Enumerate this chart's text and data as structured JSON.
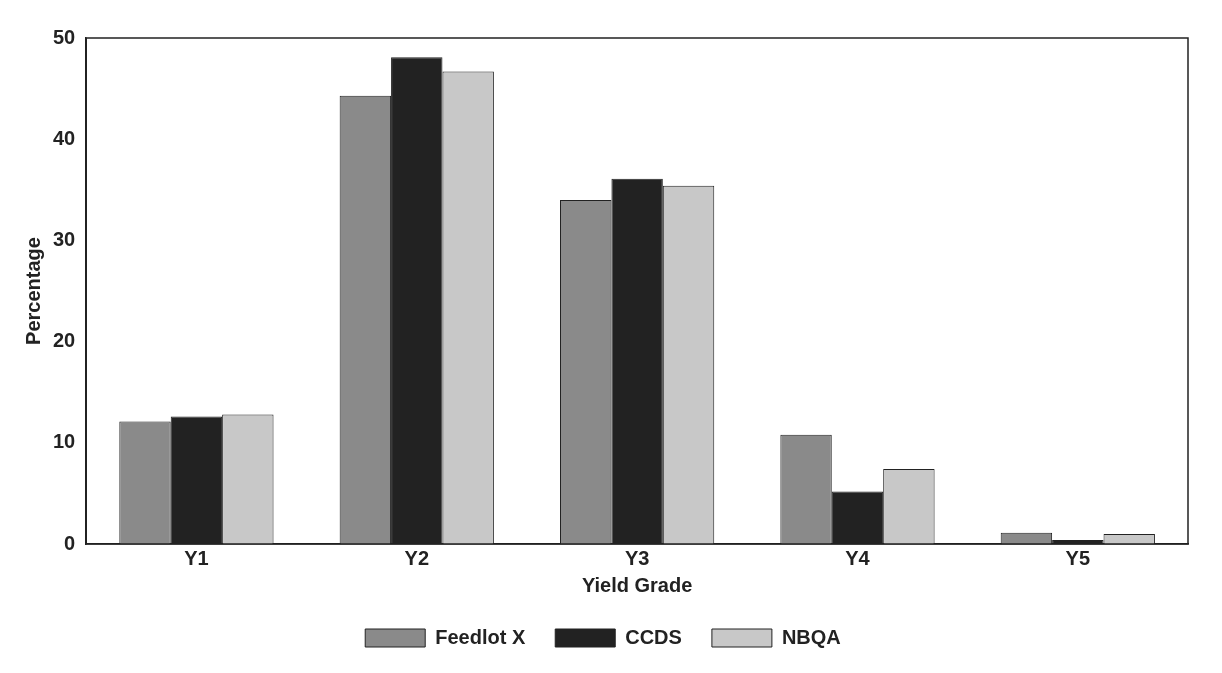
{
  "chart_data": {
    "type": "bar",
    "xlabel": "Yield Grade",
    "ylabel": "Percentage",
    "categories": [
      "Y1",
      "Y2",
      "Y3",
      "Y4",
      "Y5"
    ],
    "series": [
      {
        "name": "Feedlot X",
        "color": "#8a8a8a",
        "values": [
          12.1,
          44.3,
          34.0,
          10.8,
          1.1
        ]
      },
      {
        "name": "CCDS",
        "color": "#222222",
        "values": [
          12.6,
          48.1,
          36.1,
          5.2,
          0.4
        ]
      },
      {
        "name": "NBQA",
        "color": "#c8c8c8",
        "values": [
          12.8,
          46.7,
          35.4,
          7.4,
          1.0
        ]
      }
    ],
    "ylim": [
      0,
      50
    ],
    "yticks": [
      0,
      10,
      20,
      30,
      40,
      50
    ],
    "grid": false,
    "legend": "bottom"
  }
}
